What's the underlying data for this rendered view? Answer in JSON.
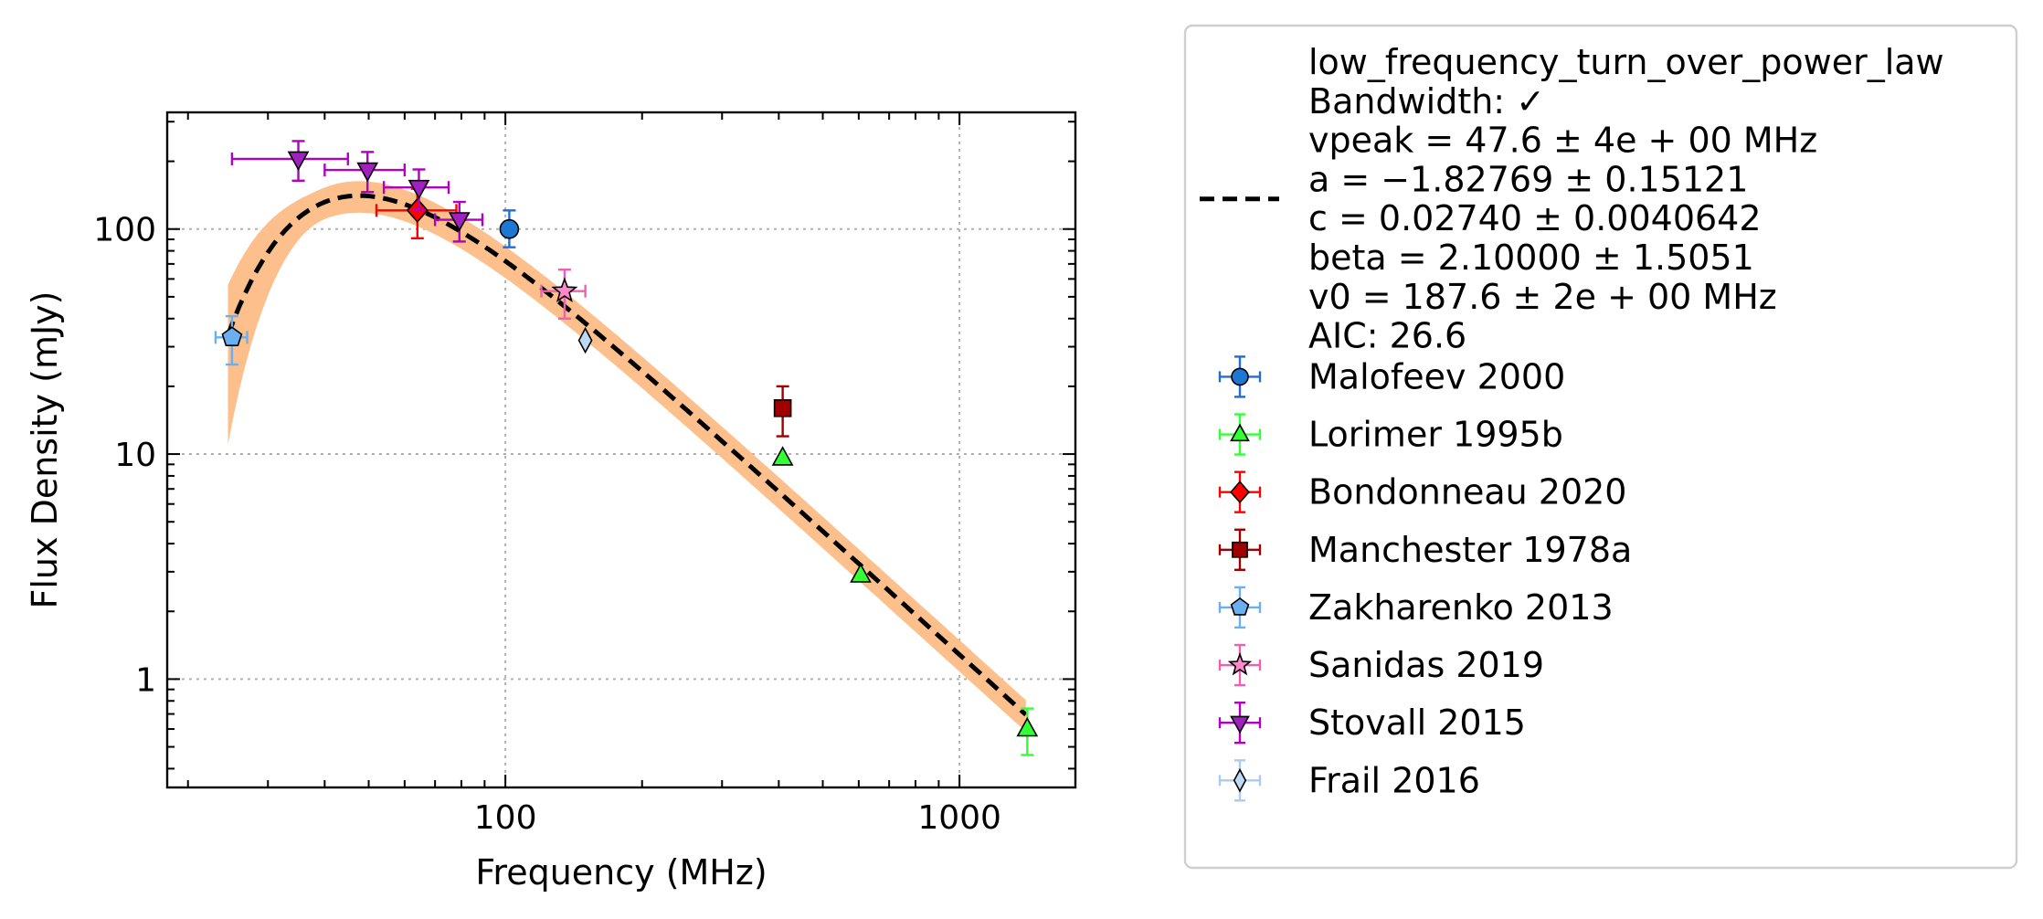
{
  "chart_data": {
    "type": "scatter",
    "xlabel": "Frequency (MHz)",
    "ylabel": "Flux Density (mJy)",
    "xscale": "log",
    "yscale": "log",
    "xlim": [
      18,
      1800
    ],
    "ylim": [
      0.33,
      330
    ],
    "xticks": [
      {
        "value": 100,
        "label": "100"
      },
      {
        "value": 1000,
        "label": "1000"
      }
    ],
    "yticks": [
      {
        "value": 1,
        "label": "1"
      },
      {
        "value": 10,
        "label": "10"
      },
      {
        "value": 100,
        "label": "100"
      }
    ],
    "grid": true,
    "legend_position": "outside-right",
    "fit": {
      "model_lines": [
        "low_frequency_turn_over_power_law",
        "Bandwidth: ✓",
        "vpeak = 47.6 ± 4e + 00 MHz",
        "a = −1.82769 ± 0.15121",
        "c = 0.02740 ± 0.0040642",
        "beta = 2.10000 ± 1.5051",
        "v0 = 187.6 ± 2e + 00 MHz",
        "AIC: 26.6"
      ],
      "vpeak": 47.6,
      "a": -1.82769,
      "c": 0.0274,
      "beta": 2.1,
      "v0": 187.6,
      "x_range": [
        24.5,
        1400
      ],
      "line_color": "#000000",
      "band_color": "#fdbf8b"
    },
    "series": [
      {
        "name": "Malofeev 2000",
        "marker": "circle",
        "color": "#1f77d4",
        "ecolor": "#1f6fd0",
        "points": [
          {
            "x": 102,
            "y": 100,
            "ylo": 83,
            "yhi": 121,
            "xlo": 102,
            "xhi": 102
          }
        ]
      },
      {
        "name": "Lorimer 1995b",
        "marker": "triangle-up",
        "color": "#33ff33",
        "ecolor": "#33ff33",
        "points": [
          {
            "x": 408,
            "y": 9.6,
            "ylo": 9.6,
            "yhi": 9.6,
            "xlo": 408,
            "xhi": 408
          },
          {
            "x": 606,
            "y": 2.9,
            "ylo": 2.9,
            "yhi": 2.9,
            "xlo": 606,
            "xhi": 606
          },
          {
            "x": 1410,
            "y": 0.6,
            "ylo": 0.46,
            "yhi": 0.74,
            "xlo": 1410,
            "xhi": 1410
          }
        ]
      },
      {
        "name": "Bondonneau 2020",
        "marker": "diamond",
        "color": "#ff0000",
        "ecolor": "#ff0000",
        "points": [
          {
            "x": 64,
            "y": 121,
            "ylo": 91,
            "yhi": 151,
            "xlo": 52,
            "xhi": 78
          }
        ]
      },
      {
        "name": "Manchester 1978a",
        "marker": "square",
        "color": "#a00000",
        "ecolor": "#a00000",
        "points": [
          {
            "x": 408,
            "y": 16,
            "ylo": 12,
            "yhi": 20,
            "xlo": 408,
            "xhi": 408
          }
        ]
      },
      {
        "name": "Zakharenko 2013",
        "marker": "pentagon",
        "color": "#6aaff0",
        "ecolor": "#6aaff0",
        "points": [
          {
            "x": 25,
            "y": 33,
            "ylo": 25,
            "yhi": 41,
            "xlo": 23,
            "xhi": 27
          }
        ]
      },
      {
        "name": "Sanidas 2019",
        "marker": "star",
        "color": "#ff88cc",
        "ecolor": "#f060b0",
        "points": [
          {
            "x": 135,
            "y": 53,
            "ylo": 40,
            "yhi": 66,
            "xlo": 120,
            "xhi": 150
          }
        ]
      },
      {
        "name": "Stovall 2015",
        "marker": "triangle-down",
        "color": "#a020c0",
        "ecolor": "#b000c0",
        "points": [
          {
            "x": 35,
            "y": 205,
            "ylo": 164,
            "yhi": 246,
            "xlo": 25,
            "xhi": 45
          },
          {
            "x": 49.7,
            "y": 183,
            "ylo": 146,
            "yhi": 220,
            "xlo": 40,
            "xhi": 60
          },
          {
            "x": 64.5,
            "y": 153,
            "ylo": 122,
            "yhi": 184,
            "xlo": 54,
            "xhi": 75
          },
          {
            "x": 79.2,
            "y": 110,
            "ylo": 88,
            "yhi": 132,
            "xlo": 70,
            "xhi": 89
          }
        ]
      },
      {
        "name": "Frail 2016",
        "marker": "thin-diamond",
        "color": "#bcd9f5",
        "ecolor": "#a8cdf0",
        "points": [
          {
            "x": 150,
            "y": 32,
            "ylo": 32,
            "yhi": 32,
            "xlo": 150,
            "xhi": 150
          }
        ]
      }
    ]
  }
}
